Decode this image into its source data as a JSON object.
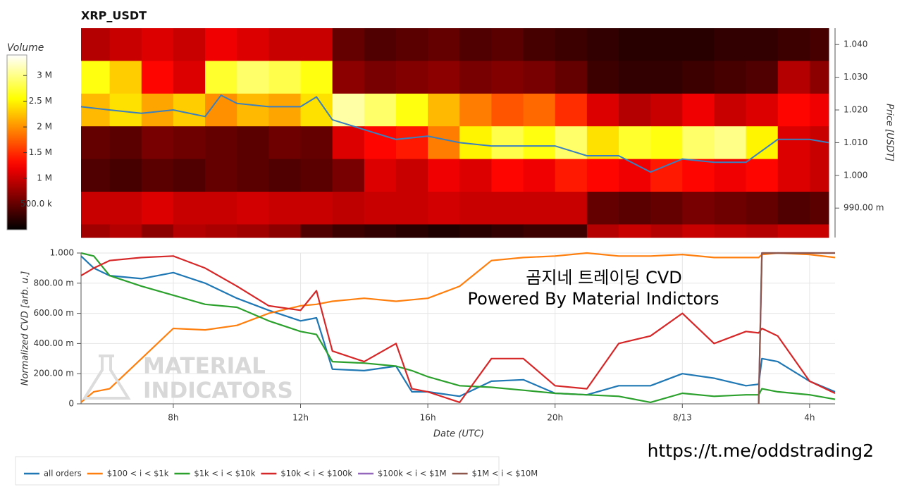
{
  "chart_data": [
    {
      "type": "heatmap",
      "title": "XRP_USDT",
      "colorbar_label": "Volume",
      "ylabel": "Price [USDT]",
      "yaxis_side": "right",
      "xlim": [
        5.1,
        28.8
      ],
      "ylim": [
        0.981,
        1.045
      ],
      "yticks": [
        {
          "value": 1.04,
          "label": "1.040"
        },
        {
          "value": 1.03,
          "label": "1.030"
        },
        {
          "value": 1.02,
          "label": "1.020"
        },
        {
          "value": 1.01,
          "label": "1.010"
        },
        {
          "value": 1.0,
          "label": "1.000"
        },
        {
          "value": 0.99,
          "label": "990.00 m"
        }
      ],
      "clim": [
        0,
        3400000
      ],
      "cticks": [
        {
          "value": 500000,
          "label": "500.0 k"
        },
        {
          "value": 1000000,
          "label": "1 M"
        },
        {
          "value": 1500000,
          "label": "1.5 M"
        },
        {
          "value": 2000000,
          "label": "2 M"
        },
        {
          "value": 2500000,
          "label": "2.5 M"
        },
        {
          "value": 3000000,
          "label": "3 M"
        }
      ],
      "x_edges": [
        5.1,
        6,
        7,
        8,
        9,
        10,
        11,
        12,
        13,
        14,
        15,
        16,
        17,
        18,
        19,
        20,
        21,
        22,
        23,
        24,
        25,
        26,
        27,
        28,
        28.6
      ],
      "y_edges": [
        1.045,
        1.035,
        1.025,
        1.015,
        1.005,
        0.995,
        0.985,
        0.981
      ],
      "z": [
        [
          900000,
          1000000,
          1100000,
          1000000,
          1200000,
          1100000,
          1000000,
          1000000,
          500000,
          400000,
          450000,
          500000,
          400000,
          450000,
          350000,
          300000,
          250000,
          200000,
          200000,
          200000,
          250000,
          250000,
          300000,
          350000
        ],
        [
          2600000,
          2300000,
          1300000,
          1100000,
          2700000,
          2900000,
          2800000,
          2600000,
          700000,
          600000,
          650000,
          700000,
          600000,
          650000,
          600000,
          500000,
          300000,
          250000,
          250000,
          300000,
          350000,
          400000,
          900000,
          700000
        ],
        [
          2200000,
          2400000,
          2100000,
          2300000,
          2000000,
          2200000,
          2100000,
          2400000,
          3100000,
          2900000,
          2600000,
          2200000,
          1900000,
          1700000,
          1800000,
          1500000,
          1100000,
          900000,
          1000000,
          1200000,
          1000000,
          1100000,
          1300000,
          1200000
        ],
        [
          500000,
          450000,
          600000,
          550000,
          500000,
          450000,
          550000,
          500000,
          1100000,
          1300000,
          1400000,
          1900000,
          2500000,
          2800000,
          2600000,
          2900000,
          2400000,
          2700000,
          2600000,
          2900000,
          3000000,
          2500000,
          1100000,
          1000000
        ],
        [
          400000,
          350000,
          450000,
          400000,
          500000,
          450000,
          400000,
          450000,
          600000,
          1100000,
          1000000,
          1200000,
          1100000,
          1300000,
          1200000,
          1400000,
          1300000,
          1200000,
          1400000,
          1300000,
          1200000,
          1300000,
          1100000,
          1000000
        ],
        [
          1000000,
          1000000,
          1100000,
          1000000,
          1000000,
          1050000,
          1000000,
          1000000,
          950000,
          1000000,
          1000000,
          1050000,
          1000000,
          1000000,
          1000000,
          1000000,
          500000,
          450000,
          500000,
          600000,
          550000,
          500000,
          400000,
          450000
        ],
        [
          800000,
          900000,
          700000,
          900000,
          850000,
          800000,
          700000,
          400000,
          300000,
          250000,
          200000,
          150000,
          200000,
          250000,
          300000,
          300000,
          900000,
          1000000,
          900000,
          1000000,
          950000,
          900000,
          1000000,
          1000000
        ]
      ],
      "price_line": {
        "color": "#3a7fbf",
        "x": [
          5.1,
          6,
          7,
          8,
          9,
          9.5,
          10,
          11,
          12,
          12.5,
          13,
          14,
          15,
          16,
          17,
          18,
          19,
          20,
          21,
          22,
          23,
          24,
          25,
          26,
          27,
          28,
          28.6
        ],
        "values": [
          1.021,
          1.02,
          1.019,
          1.02,
          1.018,
          1.0245,
          1.022,
          1.021,
          1.021,
          1.024,
          1.017,
          1.014,
          1.011,
          1.012,
          1.01,
          1.009,
          1.009,
          1.009,
          1.006,
          1.006,
          1.001,
          1.005,
          1.004,
          1.004,
          1.011,
          1.011,
          1.01
        ]
      }
    },
    {
      "type": "line",
      "ylabel": "Normalized CVD [arb. u.]",
      "xlabel": "Date (UTC)",
      "grid": true,
      "legend": "bottom-left",
      "xlim": [
        5.1,
        28.8
      ],
      "xticks": [
        {
          "value": 8,
          "label": "8h"
        },
        {
          "value": 12,
          "label": "12h"
        },
        {
          "value": 16,
          "label": "16h"
        },
        {
          "value": 20,
          "label": "20h"
        },
        {
          "value": 24,
          "label": "8/13"
        },
        {
          "value": 28,
          "label": "4h"
        }
      ],
      "ylim": [
        0,
        1
      ],
      "yticks": [
        0,
        {
          "value": 0.2,
          "label": "200.00 m"
        },
        {
          "value": 0.4,
          "label": "400.00 m"
        },
        {
          "value": 0.6,
          "label": "600.00 m"
        },
        {
          "value": 0.8,
          "label": "800.00 m"
        },
        {
          "value": 1,
          "label": "1.000"
        }
      ],
      "annotations": [
        "곰지네 트레이딩 CVD",
        "Powered By Material Indictors"
      ],
      "x": [
        5.1,
        5.5,
        6,
        7,
        8,
        9,
        10,
        11,
        12,
        12.5,
        13,
        14,
        15,
        15.5,
        16,
        17,
        18,
        19,
        20,
        21,
        22,
        23,
        24,
        25,
        26,
        26.4,
        26.5,
        27,
        28,
        28.8
      ],
      "series": [
        {
          "name": "all orders",
          "color": "#1f77b4",
          "values": [
            0.98,
            0.9,
            0.85,
            0.83,
            0.87,
            0.8,
            0.7,
            0.62,
            0.55,
            0.57,
            0.23,
            0.22,
            0.25,
            0.08,
            0.08,
            0.05,
            0.15,
            0.16,
            0.07,
            0.06,
            0.12,
            0.12,
            0.2,
            0.17,
            0.12,
            0.13,
            0.3,
            0.28,
            0.15,
            0.08
          ]
        },
        {
          "name": "$100 < i < $1k",
          "color": "#ff7f0e",
          "values": [
            0.01,
            0.08,
            0.1,
            0.3,
            0.5,
            0.49,
            0.52,
            0.6,
            0.65,
            0.66,
            0.68,
            0.7,
            0.68,
            0.69,
            0.7,
            0.78,
            0.95,
            0.97,
            0.98,
            1.0,
            0.98,
            0.98,
            0.99,
            0.97,
            0.97,
            0.97,
            0.99,
            1.0,
            0.99,
            0.97
          ]
        },
        {
          "name": "$1k < i < $10k",
          "color": "#2ca02c",
          "values": [
            1.0,
            0.98,
            0.85,
            0.78,
            0.72,
            0.66,
            0.64,
            0.55,
            0.48,
            0.46,
            0.28,
            0.27,
            0.25,
            0.22,
            0.18,
            0.12,
            0.11,
            0.09,
            0.07,
            0.06,
            0.05,
            0.01,
            0.07,
            0.05,
            0.06,
            0.06,
            0.1,
            0.08,
            0.06,
            0.03
          ]
        },
        {
          "name": "$10k < i < $100k",
          "color": "#d62728",
          "values": [
            0.85,
            0.9,
            0.95,
            0.97,
            0.98,
            0.9,
            0.78,
            0.65,
            0.62,
            0.75,
            0.35,
            0.28,
            0.4,
            0.1,
            0.08,
            0.01,
            0.3,
            0.3,
            0.12,
            0.1,
            0.4,
            0.45,
            0.6,
            0.4,
            0.48,
            0.47,
            0.5,
            0.45,
            0.15,
            0.07
          ]
        },
        {
          "name": "$100k < i < $1M",
          "color": "#9467bd",
          "values": [
            null,
            null,
            null,
            null,
            null,
            null,
            null,
            null,
            null,
            null,
            null,
            null,
            null,
            null,
            null,
            null,
            null,
            null,
            null,
            null,
            null,
            null,
            null,
            null,
            null,
            0,
            1,
            1,
            1,
            1
          ]
        },
        {
          "name": "$1M < i < $10M",
          "color": "#8c564b",
          "values": [
            null,
            null,
            null,
            null,
            null,
            null,
            null,
            null,
            null,
            null,
            null,
            null,
            null,
            null,
            null,
            null,
            null,
            null,
            null,
            null,
            null,
            null,
            null,
            null,
            null,
            0,
            1,
            1,
            1,
            1
          ]
        }
      ]
    }
  ],
  "watermark": [
    "MATERIAL",
    "INDICATORS"
  ],
  "footer_link": "https://t.me/oddstrading2"
}
